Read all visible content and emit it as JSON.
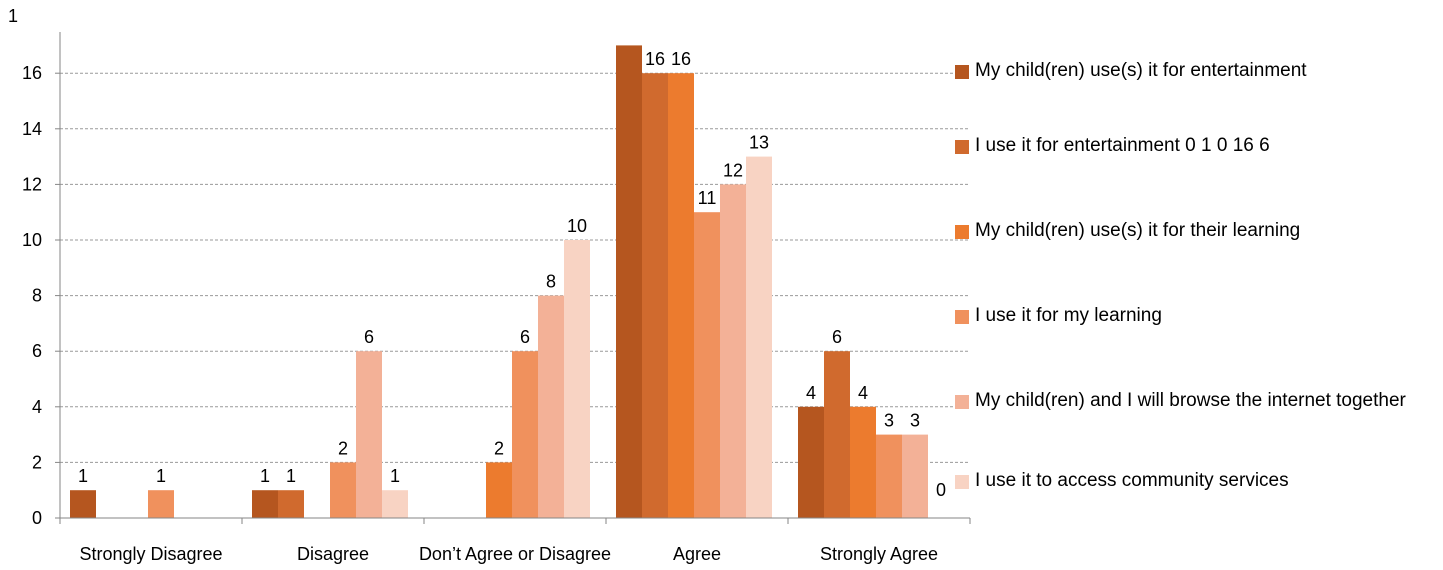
{
  "chart_data": {
    "type": "bar",
    "title": "",
    "corner_label": "1",
    "categories": [
      "Strongly Disagree",
      "Disagree",
      "Don’t Agree or Disagree",
      "Agree",
      "Strongly Agree"
    ],
    "ylim": [
      0,
      18
    ],
    "yticks": [
      0,
      2,
      4,
      6,
      8,
      10,
      12,
      14,
      16
    ],
    "grid": true,
    "legend_position": "right",
    "series": [
      {
        "name": "My child(ren) use(s) it for entertainment",
        "color": "#B5561F",
        "values": [
          1,
          1,
          0,
          17,
          4
        ],
        "labels": [
          "1",
          "1",
          "",
          "",
          "4"
        ]
      },
      {
        "name": "I use it for entertainment 0 1 0 16 6",
        "color": "#D06A2E",
        "values": [
          0,
          1,
          0,
          16,
          6
        ],
        "labels": [
          "",
          "1",
          "",
          "16",
          "6"
        ]
      },
      {
        "name": "My child(ren) use(s) it for their learning",
        "color": "#EC7B2E",
        "values": [
          0,
          0,
          2,
          16,
          4
        ],
        "labels": [
          "",
          "",
          "2",
          "16",
          "4"
        ]
      },
      {
        "name": "I use it for my learning",
        "color": "#F0915D",
        "values": [
          1,
          2,
          6,
          11,
          3
        ],
        "labels": [
          "1",
          "2",
          "6",
          "11",
          "3"
        ]
      },
      {
        "name": "My child(ren) and I will browse the internet together",
        "color": "#F3B197",
        "values": [
          0,
          6,
          8,
          12,
          3
        ],
        "labels": [
          "",
          "6",
          "8",
          "12",
          "3"
        ]
      },
      {
        "name": "I use it to access community services",
        "color": "#F8D3C3",
        "values": [
          0,
          1,
          10,
          13,
          0
        ],
        "labels": [
          "",
          "1",
          "10",
          "13",
          "0"
        ]
      }
    ]
  }
}
